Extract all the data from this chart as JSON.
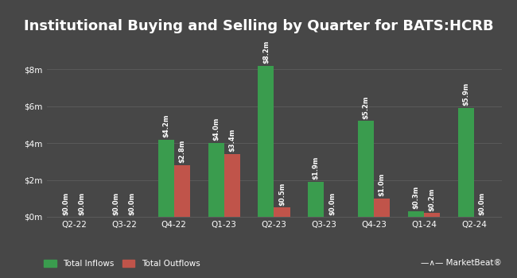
{
  "title": "Institutional Buying and Selling by Quarter for BATS:HCRB",
  "quarters": [
    "Q2-22",
    "Q3-22",
    "Q4-22",
    "Q1-23",
    "Q2-23",
    "Q3-23",
    "Q4-23",
    "Q1-24",
    "Q2-24"
  ],
  "inflows": [
    0.0,
    0.0,
    4.2,
    4.0,
    8.2,
    1.9,
    5.2,
    0.3,
    5.9
  ],
  "outflows": [
    0.0,
    0.0,
    2.8,
    3.4,
    0.5,
    0.0,
    1.0,
    0.2,
    0.0
  ],
  "inflow_labels": [
    "$0.0m",
    "$0.0m",
    "$4.2m",
    "$4.0m",
    "$8.2m",
    "$1.9m",
    "$5.2m",
    "$0.3m",
    "$5.9m"
  ],
  "outflow_labels": [
    "$0.0m",
    "$0.0m",
    "$2.8m",
    "$3.4m",
    "$0.5m",
    "$0.0m",
    "$1.0m",
    "$0.2m",
    "$0.0m"
  ],
  "inflow_color": "#3a9c4e",
  "outflow_color": "#c0544a",
  "background_color": "#474747",
  "grid_color": "#5a5a5a",
  "text_color": "#ffffff",
  "title_fontsize": 13,
  "label_fontsize": 6.0,
  "tick_fontsize": 7.5,
  "legend_fontsize": 7.5,
  "ylim": [
    0,
    9.8
  ],
  "yticks": [
    0,
    2,
    4,
    6,
    8
  ],
  "ytick_labels": [
    "$0m",
    "$2m",
    "$4m",
    "$6m",
    "$8m"
  ],
  "bar_width": 0.32
}
